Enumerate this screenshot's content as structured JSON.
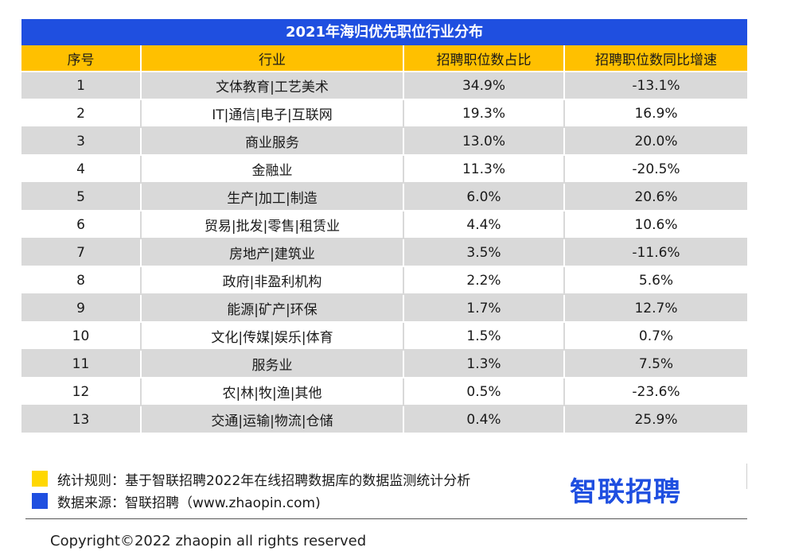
{
  "chart_data": {
    "type": "table",
    "title": "2021年海归优先职位行业分布",
    "columns": [
      "序号",
      "行业",
      "招聘职位数占比",
      "招聘职位数同比增速"
    ],
    "rows": [
      [
        "1",
        "文体教育|工艺美术",
        "34.9%",
        "-13.1%"
      ],
      [
        "2",
        "IT|通信|电子|互联网",
        "19.3%",
        "16.9%"
      ],
      [
        "3",
        "商业服务",
        "13.0%",
        "20.0%"
      ],
      [
        "4",
        "金融业",
        "11.3%",
        "-20.5%"
      ],
      [
        "5",
        "生产|加工|制造",
        "6.0%",
        "20.6%"
      ],
      [
        "6",
        "贸易|批发|零售|租赁业",
        "4.4%",
        "10.6%"
      ],
      [
        "7",
        "房地产|建筑业",
        "3.5%",
        "-11.6%"
      ],
      [
        "8",
        "政府|非盈利机构",
        "2.2%",
        "5.6%"
      ],
      [
        "9",
        "能源|矿产|环保",
        "1.7%",
        "12.7%"
      ],
      [
        "10",
        "文化|传媒|娱乐|体育",
        "1.5%",
        "0.7%"
      ],
      [
        "11",
        "服务业",
        "1.3%",
        "7.5%"
      ],
      [
        "12",
        "农|林|牧|渔|其他",
        "0.5%",
        "-23.6%"
      ],
      [
        "13",
        "交通|运输|物流|仓储",
        "0.4%",
        "25.9%"
      ]
    ]
  },
  "notes": [
    {
      "text": "统计规则：基于智联招聘2022年在线招聘数据库的数据监测统计分析",
      "color": "#ffd700"
    },
    {
      "text": "数据来源：智联招聘（www.zhaopin.com)",
      "color": "#1f4fe0"
    }
  ],
  "logo_text": "智联招聘",
  "copyright": "Copyright©2022 zhaopin all rights reserved",
  "colors": {
    "title_bg": "#1f4fe0",
    "header_bg": "#ffc000",
    "stripe": "#d9d9d9"
  }
}
